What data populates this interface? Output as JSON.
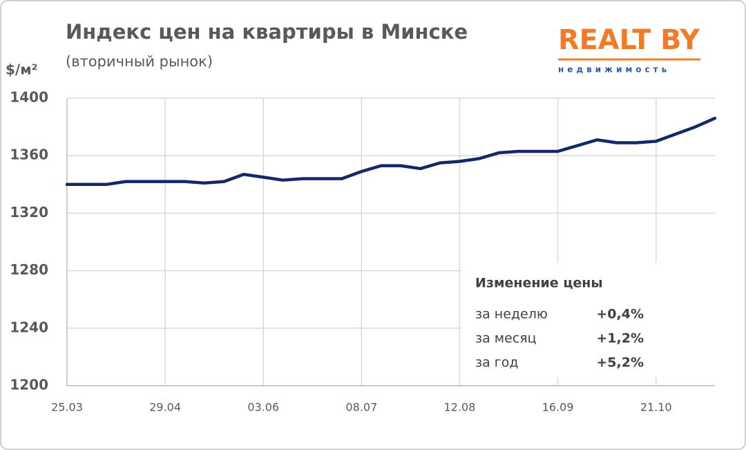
{
  "chart_data": {
    "type": "line",
    "title": "Индекс цен на квартиры в Минске",
    "subtitle": "(вторичный рынок)",
    "y_label": "$/м²",
    "categories": [
      "25.03",
      null,
      null,
      null,
      null,
      "29.04",
      null,
      null,
      null,
      null,
      "03.06",
      null,
      null,
      null,
      null,
      "08.07",
      null,
      null,
      null,
      null,
      "12.08",
      null,
      null,
      null,
      null,
      "16.09",
      null,
      null,
      null,
      null,
      "21.10",
      null,
      null,
      null
    ],
    "series": [
      {
        "name": "Индекс цен",
        "color": "#13286a",
        "values": [
          1340,
          1340,
          1340,
          1342,
          1342,
          1342,
          1342,
          1341,
          1342,
          1347,
          1345,
          1343,
          1344,
          1344,
          1344,
          1349,
          1353,
          1353,
          1351,
          1355,
          1356,
          1358,
          1362,
          1363,
          1363,
          1363,
          1367,
          1371,
          1369,
          1369,
          1370,
          1375,
          1380,
          1386
        ]
      }
    ],
    "ylim": [
      1200,
      1400
    ],
    "yticks": [
      1200,
      1240,
      1280,
      1320,
      1360,
      1400
    ],
    "grid": true
  },
  "change_box": {
    "title": "Изменение цены",
    "rows": [
      [
        "за неделю",
        "+0,4%"
      ],
      [
        "за месяц",
        "+1,2%"
      ],
      [
        "за год",
        "+5,2%"
      ]
    ]
  },
  "logo": {
    "name": "REALT BY",
    "tagline": "недвижимость"
  }
}
